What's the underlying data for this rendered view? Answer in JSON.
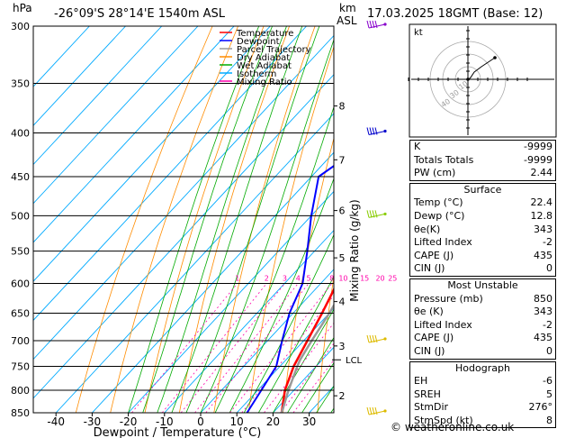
{
  "header": {
    "hpa_label": "hPa",
    "location": "-26°09'S  28°14'E  1540m  ASL",
    "km_label": "km",
    "asl_label": "ASL",
    "datetime": "17.03.2025  18GMT  (Base: 12)"
  },
  "legend": [
    {
      "label": "Temperature",
      "color": "#ff0000"
    },
    {
      "label": "Dewpoint",
      "color": "#0000ff"
    },
    {
      "label": "Parcel Trajectory",
      "color": "#999999"
    },
    {
      "label": "Dry Adiabat",
      "color": "#ff8c00"
    },
    {
      "label": "Wet Adiabat",
      "color": "#00aa00"
    },
    {
      "label": "Isotherm",
      "color": "#00aaff"
    },
    {
      "label": "Mixing Ratio",
      "color": "#ff00aa"
    }
  ],
  "chart_data": {
    "type": "line",
    "xlabel": "Dewpoint / Temperature (°C)",
    "ylabel": "hPa",
    "right_label": "Mixing Ratio (g/kg)",
    "xlim": [
      -45,
      35
    ],
    "ylim": [
      300,
      850
    ],
    "x_ticks": [
      -40,
      -30,
      -20,
      -10,
      0,
      10,
      20,
      30
    ],
    "pressure_ticks": [
      300,
      350,
      400,
      450,
      500,
      550,
      600,
      650,
      700,
      750,
      800,
      850
    ],
    "km_ticks": [
      {
        "km": "2",
        "p": 812
      },
      {
        "km": "3",
        "p": 710
      },
      {
        "km": "4",
        "p": 630
      },
      {
        "km": "5",
        "p": 560
      },
      {
        "km": "6",
        "p": 493
      },
      {
        "km": "7",
        "p": 430
      },
      {
        "km": "8",
        "p": 372
      }
    ],
    "lcl_label": "LCL",
    "lcl_p": 737,
    "mixing_ratio_labels": [
      "1",
      "2",
      "3",
      "4",
      "5",
      "8",
      "10",
      "15",
      "20",
      "25"
    ],
    "mixing_ratio_values": [
      1,
      2,
      3,
      4,
      5,
      8,
      10,
      15,
      20,
      25
    ],
    "series": [
      {
        "name": "Temperature",
        "color": "#ff0000",
        "points": [
          [
            850,
            22.4
          ],
          [
            800,
            17.5
          ],
          [
            750,
            13.8
          ],
          [
            700,
            11
          ],
          [
            650,
            8
          ],
          [
            600,
            4.5
          ],
          [
            550,
            0.5
          ],
          [
            500,
            -4.5
          ],
          [
            450,
            -10
          ],
          [
            400,
            -16.5
          ],
          [
            350,
            -24.5
          ],
          [
            300,
            -33
          ]
        ]
      },
      {
        "name": "Dewpoint",
        "color": "#0000ff",
        "points": [
          [
            850,
            12.8
          ],
          [
            800,
            11
          ],
          [
            750,
            9
          ],
          [
            700,
            4
          ],
          [
            650,
            -1
          ],
          [
            600,
            -5
          ],
          [
            550,
            -12
          ],
          [
            500,
            -20
          ],
          [
            450,
            -28
          ],
          [
            400,
            -22
          ],
          [
            370,
            -31
          ],
          [
            340,
            -42
          ],
          [
            300,
            -58
          ]
        ]
      },
      {
        "name": "Parcel Trajectory",
        "color": "#999999",
        "points": [
          [
            850,
            22.4
          ],
          [
            800,
            18.5
          ],
          [
            750,
            14.8
          ],
          [
            737,
            13.9
          ],
          [
            700,
            12.2
          ],
          [
            650,
            10
          ],
          [
            600,
            7.2
          ],
          [
            550,
            4
          ],
          [
            500,
            0.3
          ],
          [
            450,
            -4.5
          ],
          [
            400,
            -10.5
          ],
          [
            350,
            -18
          ],
          [
            300,
            -27.5
          ]
        ]
      }
    ]
  },
  "hodograph": {
    "label": "kt",
    "ring_labels": [
      "10",
      "30",
      "40"
    ]
  },
  "indices": [
    {
      "label": "K",
      "value": "-9999"
    },
    {
      "label": "Totals Totals",
      "value": "-9999"
    },
    {
      "label": "PW (cm)",
      "value": "2.44"
    }
  ],
  "surface": {
    "title": "Surface",
    "rows": [
      {
        "label": "Temp (°C)",
        "value": "22.4"
      },
      {
        "label": "Dewp (°C)",
        "value": "12.8"
      },
      {
        "label": "θe(K)",
        "value": "343"
      },
      {
        "label": "Lifted Index",
        "value": "-2"
      },
      {
        "label": "CAPE (J)",
        "value": "435"
      },
      {
        "label": "CIN (J)",
        "value": "0"
      }
    ]
  },
  "most_unstable": {
    "title": "Most Unstable",
    "rows": [
      {
        "label": "Pressure (mb)",
        "value": "850"
      },
      {
        "label": "θe (K)",
        "value": "343"
      },
      {
        "label": "Lifted Index",
        "value": "-2"
      },
      {
        "label": "CAPE (J)",
        "value": "435"
      },
      {
        "label": "CIN (J)",
        "value": "0"
      }
    ]
  },
  "hodograph_table": {
    "title": "Hodograph",
    "rows": [
      {
        "label": "EH",
        "value": "-6"
      },
      {
        "label": "SREH",
        "value": "5"
      },
      {
        "label": "StmDir",
        "value": "276°"
      },
      {
        "label": "StmSpd (kt)",
        "value": "8"
      }
    ]
  },
  "credit": "© weatheronline.co.uk"
}
